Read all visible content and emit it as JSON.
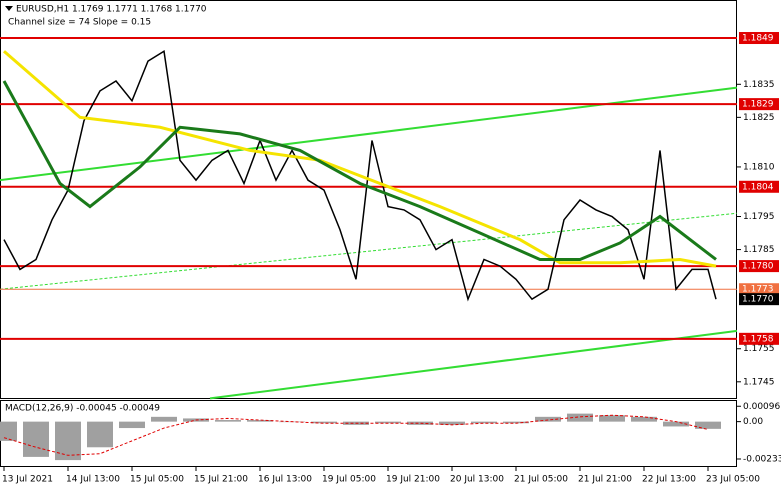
{
  "chart_data": {
    "type": "line",
    "title": "EURUSD,H1  1.1769 1.1771 1.1768 1.1770",
    "subtitle": "Channel size = 74 Slope = 0.15",
    "xlim": [
      -1,
      183.25
    ],
    "xticks": [
      {
        "value": 0,
        "label": "13 Jul 2021"
      },
      {
        "value": 16,
        "label": "14 Jul 13:00"
      },
      {
        "value": 32,
        "label": "15 Jul 05:00"
      },
      {
        "value": 48,
        "label": "15 Jul 21:00"
      },
      {
        "value": 64,
        "label": "16 Jul 13:00"
      },
      {
        "value": 80,
        "label": "19 Jul 05:00"
      },
      {
        "value": 96,
        "label": "19 Jul 21:00"
      },
      {
        "value": 112,
        "label": "20 Jul 13:00"
      },
      {
        "value": 128,
        "label": "21 Jul 05:00"
      },
      {
        "value": 144,
        "label": "21 Jul 21:00"
      },
      {
        "value": 160,
        "label": "22 Jul 13:00"
      },
      {
        "value": 176,
        "label": "23 Jul 05:00"
      }
    ],
    "ylim": [
      1.17401,
      1.18605
    ],
    "yticks": [
      1.1835,
      1.1825,
      {
        "value": 1.181,
        "label": "1.1810"
      },
      1.1795,
      1.1785,
      1.1755,
      1.1745
    ],
    "series": [
      {
        "color": "#000000",
        "x": [
          0,
          4,
          8,
          12,
          16,
          20,
          24,
          28,
          32,
          36,
          40,
          44,
          48,
          52,
          56,
          60,
          64,
          68,
          72,
          76,
          80,
          84,
          88,
          92,
          96,
          100,
          104,
          108,
          112,
          116,
          120,
          124,
          128,
          132,
          136,
          140,
          144,
          148,
          152,
          156,
          160,
          164,
          168,
          172,
          176,
          178
        ],
        "values": [
          1.1788,
          1.1779,
          1.1782,
          1.1794,
          1.1803,
          1.1824,
          1.1833,
          1.1836,
          1.183,
          1.1842,
          1.1845,
          1.1812,
          1.1806,
          1.1812,
          1.1815,
          1.1805,
          1.1818,
          1.1806,
          1.1815,
          1.1806,
          1.1803,
          1.1791,
          1.1776,
          1.1818,
          1.1798,
          1.1797,
          1.1794,
          1.1785,
          1.1788,
          1.177,
          1.1782,
          1.178,
          1.1776,
          1.177,
          1.1773,
          1.1794,
          1.18,
          1.1797,
          1.1795,
          1.1791,
          1.1776,
          1.1815,
          1.1773,
          1.1779,
          1.1779,
          1.177
        ]
      },
      {
        "color": "#f5e400",
        "x": [
          0,
          19,
          39,
          61.5,
          79,
          94,
          109,
          129,
          139,
          154,
          169,
          178
        ],
        "values": [
          1.1845,
          1.1825,
          1.1822,
          1.1815,
          1.1812,
          1.1805,
          1.1798,
          1.1788,
          1.1781,
          1.1781,
          1.1782,
          1.178
        ]
      },
      {
        "color": "#1a7a1a",
        "x": [
          0,
          14,
          21.5,
          34,
          44,
          59,
          74,
          89,
          104,
          119,
          134,
          144,
          154,
          164,
          178
        ],
        "values": [
          1.1836,
          1.1805,
          1.1798,
          1.181,
          1.1822,
          1.182,
          1.1815,
          1.1805,
          1.1798,
          1.179,
          1.1782,
          1.1782,
          1.1787,
          1.1795,
          1.1782
        ]
      }
    ],
    "trendlines": [
      {
        "color": "#33dd33",
        "x": [
          -1,
          183.25
        ],
        "values": [
          1.1806,
          1.1834
        ]
      },
      {
        "color": "#33dd33",
        "x": [
          -1,
          183.25
        ],
        "values": [
          1.1773,
          1.1796
        ],
        "dashed": true
      },
      {
        "color": "#33dd33",
        "x": [
          51.5,
          183.25
        ],
        "values": [
          1.174,
          1.17604
        ]
      }
    ],
    "levels": [
      {
        "value": 1.1849,
        "color": "#e00000"
      },
      {
        "value": 1.1829,
        "color": "#e00000"
      },
      {
        "value": 1.1804,
        "color": "#e00000"
      },
      {
        "value": 1.178,
        "label": "1.1780",
        "color": "#e00000"
      },
      {
        "value": 1.1758,
        "color": "#e00000"
      },
      {
        "value": 1.1773,
        "color": "#f07040"
      }
    ],
    "price_label": {
      "value": 1.177,
      "label": "1.1770",
      "color": "#000000"
    },
    "macd": {
      "title": "MACD(12,26,9) -0.00045 -0.00049",
      "ylim": [
        -0.00283,
        0.00135
      ],
      "yticks": [
        0.00096,
        {
          "value": 0,
          "label": "0.00"
        },
        -0.00233
      ],
      "x": [
        0,
        8,
        16,
        24,
        32,
        40,
        48,
        56,
        64,
        72,
        80,
        88,
        96,
        104,
        112,
        120,
        128,
        136,
        144,
        152,
        160,
        168,
        176
      ],
      "histogram": [
        -0.0012,
        -0.0022,
        -0.0024,
        -0.0016,
        -0.0004,
        0.0003,
        0.0002,
        0.0001,
        0.0001,
        0,
        -0.0001,
        -0.0002,
        -0.0001,
        -0.0002,
        -0.0002,
        -0.0001,
        -0.0001,
        0.0003,
        0.0005,
        0.0004,
        0.0003,
        -0.0003,
        -0.00045
      ],
      "signal": [
        -0.001,
        -0.0016,
        -0.0021,
        -0.002,
        -0.0012,
        -0.0004,
        0.0001,
        0.0002,
        0.0001,
        0,
        -0.0001,
        -0.0001,
        -0.0001,
        -0.0001,
        -0.0002,
        -0.0001,
        -0.0001,
        0.0001,
        0.0003,
        0.0004,
        0.0003,
        0,
        -0.00049
      ],
      "histogram_color": "#a0a0a0",
      "signal_color": "#e00000"
    }
  }
}
